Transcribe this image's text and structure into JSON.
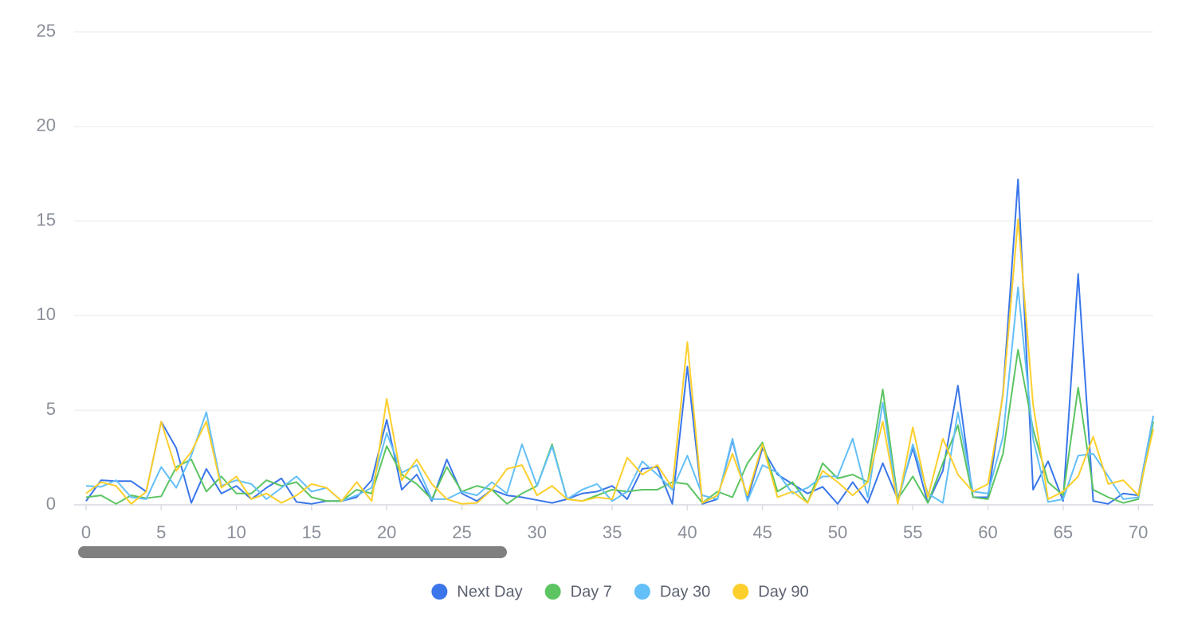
{
  "chart_data": {
    "type": "line",
    "x": [
      0,
      1,
      2,
      3,
      4,
      5,
      6,
      7,
      8,
      9,
      10,
      11,
      12,
      13,
      14,
      15,
      16,
      17,
      18,
      19,
      20,
      21,
      22,
      23,
      24,
      25,
      26,
      27,
      28,
      29,
      30,
      31,
      32,
      33,
      34,
      35,
      36,
      37,
      38,
      39,
      40,
      41,
      42,
      43,
      44,
      45,
      46,
      47,
      48,
      49,
      50,
      51,
      52,
      53,
      54,
      55,
      56,
      57,
      58,
      59,
      60,
      61,
      62,
      63,
      64,
      65,
      66,
      67,
      68,
      69,
      70,
      71
    ],
    "series": [
      {
        "name": "Next Day",
        "color": "#3a76ea",
        "values": [
          0.2,
          1.3,
          1.25,
          1.25,
          0.7,
          4.4,
          3.0,
          0.1,
          1.9,
          0.6,
          1.0,
          0.3,
          0.9,
          1.4,
          0.15,
          0.05,
          0.2,
          0.2,
          0.4,
          1.3,
          4.5,
          0.8,
          1.6,
          0.2,
          2.4,
          0.6,
          0.2,
          0.8,
          0.5,
          0.4,
          0.25,
          0.1,
          0.3,
          0.6,
          0.7,
          1.0,
          0.3,
          1.9,
          2.0,
          0.05,
          7.3,
          0.05,
          0.3,
          3.4,
          0.3,
          3.0,
          1.6,
          1.1,
          0.6,
          0.95,
          0.05,
          1.2,
          0.1,
          2.2,
          0.3,
          3.0,
          0.1,
          1.8,
          6.3,
          0.4,
          0.4,
          5.9,
          17.2,
          0.8,
          2.3,
          0.2,
          12.2,
          0.2,
          0.05,
          0.6,
          0.5,
          4.7
        ]
      },
      {
        "name": "Day 7",
        "color": "#5cc462",
        "values": [
          0.4,
          0.5,
          0.05,
          0.5,
          0.35,
          0.45,
          2.0,
          2.4,
          0.7,
          1.5,
          0.6,
          0.6,
          1.3,
          1.0,
          1.2,
          0.4,
          0.2,
          0.2,
          0.8,
          0.6,
          3.1,
          1.6,
          1.1,
          0.3,
          2.0,
          0.7,
          1.0,
          0.8,
          0.05,
          0.6,
          1.0,
          3.2,
          0.3,
          0.2,
          0.5,
          0.8,
          0.7,
          0.8,
          0.8,
          1.2,
          1.1,
          0.1,
          0.7,
          0.4,
          2.2,
          3.3,
          0.7,
          1.2,
          0.1,
          2.2,
          1.4,
          1.6,
          1.2,
          6.1,
          0.3,
          1.5,
          0.1,
          2.2,
          4.2,
          0.4,
          0.3,
          2.7,
          8.2,
          4.0,
          1.2,
          0.5,
          6.2,
          0.8,
          0.4,
          0.1,
          0.3,
          4.4
        ]
      },
      {
        "name": "Day 30",
        "color": "#63bff7",
        "values": [
          1.0,
          0.95,
          1.3,
          0.4,
          0.3,
          2.0,
          0.9,
          2.6,
          4.9,
          1.0,
          1.3,
          1.1,
          0.3,
          0.9,
          1.5,
          0.7,
          0.9,
          0.2,
          0.5,
          0.9,
          3.8,
          1.7,
          2.1,
          0.3,
          0.3,
          0.7,
          0.5,
          1.2,
          0.6,
          3.2,
          1.0,
          3.1,
          0.3,
          0.8,
          1.1,
          0.2,
          0.7,
          2.3,
          1.6,
          0.8,
          2.6,
          0.5,
          0.3,
          3.5,
          0.2,
          2.1,
          1.7,
          0.6,
          0.9,
          1.5,
          1.5,
          3.5,
          0.4,
          5.4,
          0.1,
          3.2,
          0.6,
          0.1,
          4.9,
          0.7,
          0.6,
          3.6,
          11.5,
          3.5,
          0.15,
          0.3,
          2.6,
          2.7,
          1.5,
          0.3,
          0.4,
          4.7
        ]
      },
      {
        "name": "Day 90",
        "color": "#fccf2d",
        "values": [
          0.6,
          1.2,
          1.0,
          0.05,
          0.7,
          4.4,
          1.8,
          2.8,
          4.4,
          0.9,
          1.5,
          0.3,
          0.6,
          0.1,
          0.5,
          1.1,
          0.9,
          0.2,
          1.2,
          0.2,
          5.6,
          1.3,
          2.4,
          1.1,
          0.3,
          0.05,
          0.1,
          0.8,
          1.9,
          2.1,
          0.5,
          1.0,
          0.3,
          0.2,
          0.4,
          0.3,
          2.5,
          1.6,
          2.1,
          0.9,
          8.6,
          0.1,
          0.5,
          2.7,
          0.5,
          3.2,
          0.4,
          0.7,
          0.1,
          1.8,
          1.2,
          0.5,
          1.2,
          4.4,
          0.05,
          4.1,
          0.4,
          3.5,
          1.6,
          0.7,
          1.1,
          5.8,
          15.1,
          5.3,
          0.3,
          0.7,
          1.5,
          3.6,
          1.1,
          1.3,
          0.5,
          4.0
        ]
      }
    ],
    "xlim": [
      0,
      71
    ],
    "xticks": [
      0,
      5,
      10,
      15,
      20,
      25,
      30,
      35,
      40,
      45,
      50,
      55,
      60,
      65,
      70
    ],
    "ylim": [
      0,
      25
    ],
    "yticks": [
      0,
      5,
      10,
      15,
      20,
      25
    ],
    "grid": true,
    "legend": "bottom"
  }
}
